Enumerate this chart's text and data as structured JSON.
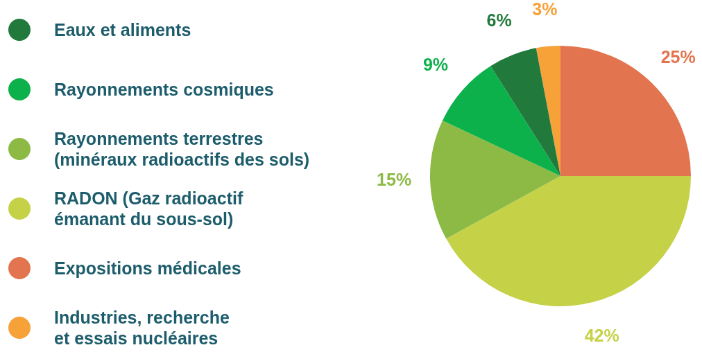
{
  "chart_data": {
    "type": "pie",
    "categories": [
      "Eaux et aliments",
      "Rayonnements cosmiques",
      "Rayonnements terrestres\n(minéraux radioactifs des sols)",
      "RADON (Gaz radioactif\némanant du sous-sol)",
      "Expositions médicales",
      "Industries, recherche\net essais nucléaires"
    ],
    "values": [
      6,
      9,
      15,
      42,
      25,
      3
    ],
    "colors": [
      "#217a3c",
      "#0db14b",
      "#8cba45",
      "#c5d147",
      "#e2754f",
      "#f7a239"
    ],
    "value_labels": [
      "6%",
      "9%",
      "15%",
      "42%",
      "25%",
      "3%"
    ],
    "legend": "left"
  }
}
